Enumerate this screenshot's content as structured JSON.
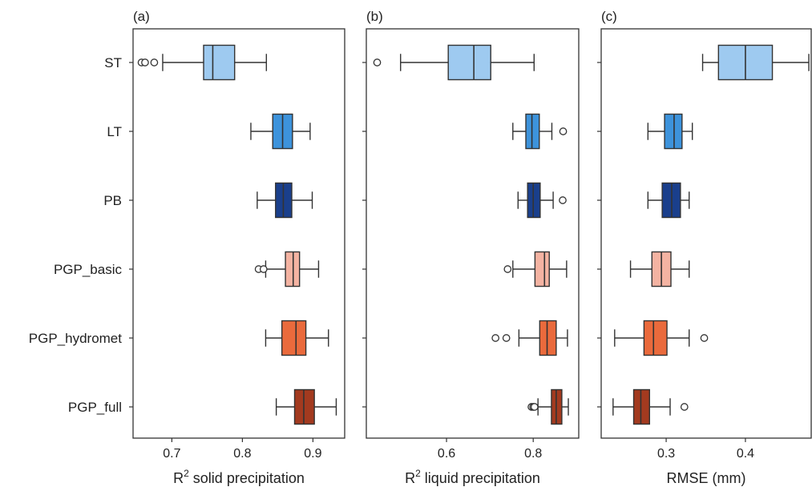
{
  "categories": [
    "ST",
    "LT",
    "PB",
    "PGP_basic",
    "PGP_hydromet",
    "PGP_full"
  ],
  "colors": {
    "ST": "#9ecaf0",
    "LT": "#3d93dc",
    "PB": "#1a3f8c",
    "PGP_basic": "#f4b3a2",
    "PGP_hydromet": "#ea6a3c",
    "PGP_full": "#a33a1f"
  },
  "chart_data": [
    {
      "type": "box",
      "panel_label": "(a)",
      "xlabel_base": "R",
      "xlabel_sup": "2",
      "xlabel_rest": " solid precipitation",
      "xlim": [
        0.645,
        0.945
      ],
      "ticks": [
        {
          "v": 0.7,
          "label": "0.7"
        },
        {
          "v": 0.8,
          "label": "0.8"
        },
        {
          "v": 0.9,
          "label": "0.9"
        }
      ],
      "boxes": [
        {
          "category": "ST",
          "whislo": 0.687,
          "q1": 0.745,
          "med": 0.758,
          "q3": 0.789,
          "whishi": 0.834,
          "fliers": [
            0.657,
            0.662,
            0.675
          ]
        },
        {
          "category": "LT",
          "whislo": 0.812,
          "q1": 0.843,
          "med": 0.857,
          "q3": 0.871,
          "whishi": 0.896,
          "fliers": []
        },
        {
          "category": "PB",
          "whislo": 0.821,
          "q1": 0.847,
          "med": 0.858,
          "q3": 0.87,
          "whishi": 0.899,
          "fliers": []
        },
        {
          "category": "PGP_basic",
          "whislo": 0.833,
          "q1": 0.861,
          "med": 0.872,
          "q3": 0.881,
          "whishi": 0.908,
          "fliers": [
            0.823,
            0.83
          ]
        },
        {
          "category": "PGP_hydromet",
          "whislo": 0.833,
          "q1": 0.856,
          "med": 0.876,
          "q3": 0.89,
          "whishi": 0.922,
          "fliers": []
        },
        {
          "category": "PGP_full",
          "whislo": 0.848,
          "q1": 0.874,
          "med": 0.887,
          "q3": 0.902,
          "whishi": 0.933,
          "fliers": []
        }
      ]
    },
    {
      "type": "box",
      "panel_label": "(b)",
      "xlabel_base": "R",
      "xlabel_sup": "2",
      "xlabel_rest": " liquid precipitation",
      "xlim": [
        0.415,
        0.905
      ],
      "ticks": [
        {
          "v": 0.6,
          "label": "0.6"
        },
        {
          "v": 0.8,
          "label": "0.8"
        }
      ],
      "boxes": [
        {
          "category": "ST",
          "whislo": 0.494,
          "q1": 0.604,
          "med": 0.663,
          "q3": 0.702,
          "whishi": 0.802,
          "fliers": [
            0.44
          ]
        },
        {
          "category": "LT",
          "whislo": 0.753,
          "q1": 0.783,
          "med": 0.797,
          "q3": 0.814,
          "whishi": 0.843,
          "fliers": [
            0.869
          ]
        },
        {
          "category": "PB",
          "whislo": 0.765,
          "q1": 0.787,
          "med": 0.8,
          "q3": 0.816,
          "whishi": 0.846,
          "fliers": [
            0.868
          ]
        },
        {
          "category": "PGP_basic",
          "whislo": 0.753,
          "q1": 0.804,
          "med": 0.826,
          "q3": 0.837,
          "whishi": 0.877,
          "fliers": [
            0.741
          ]
        },
        {
          "category": "PGP_hydromet",
          "whislo": 0.767,
          "q1": 0.815,
          "med": 0.832,
          "q3": 0.853,
          "whishi": 0.879,
          "fliers": [
            0.713,
            0.738
          ]
        },
        {
          "category": "PGP_full",
          "whislo": 0.811,
          "q1": 0.842,
          "med": 0.853,
          "q3": 0.866,
          "whishi": 0.881,
          "fliers": [
            0.796,
            0.8,
            0.803
          ]
        }
      ]
    },
    {
      "type": "box",
      "panel_label": "(c)",
      "xlabel_base": "RMSE (mm)",
      "xlabel_sup": "",
      "xlabel_rest": "",
      "xlim": [
        0.218,
        0.483
      ],
      "ticks": [
        {
          "v": 0.3,
          "label": "0.3"
        },
        {
          "v": 0.4,
          "label": "0.4"
        }
      ],
      "boxes": [
        {
          "category": "ST",
          "whislo": 0.346,
          "q1": 0.366,
          "med": 0.4,
          "q3": 0.434,
          "whishi": 0.48,
          "fliers": []
        },
        {
          "category": "LT",
          "whislo": 0.277,
          "q1": 0.298,
          "med": 0.31,
          "q3": 0.32,
          "whishi": 0.333,
          "fliers": []
        },
        {
          "category": "PB",
          "whislo": 0.277,
          "q1": 0.295,
          "med": 0.307,
          "q3": 0.318,
          "whishi": 0.329,
          "fliers": []
        },
        {
          "category": "PGP_basic",
          "whislo": 0.255,
          "q1": 0.282,
          "med": 0.294,
          "q3": 0.306,
          "whishi": 0.329,
          "fliers": []
        },
        {
          "category": "PGP_hydromet",
          "whislo": 0.235,
          "q1": 0.272,
          "med": 0.284,
          "q3": 0.301,
          "whishi": 0.329,
          "fliers": [
            0.348
          ]
        },
        {
          "category": "PGP_full",
          "whislo": 0.233,
          "q1": 0.259,
          "med": 0.268,
          "q3": 0.279,
          "whishi": 0.305,
          "fliers": [
            0.323
          ]
        }
      ]
    }
  ]
}
